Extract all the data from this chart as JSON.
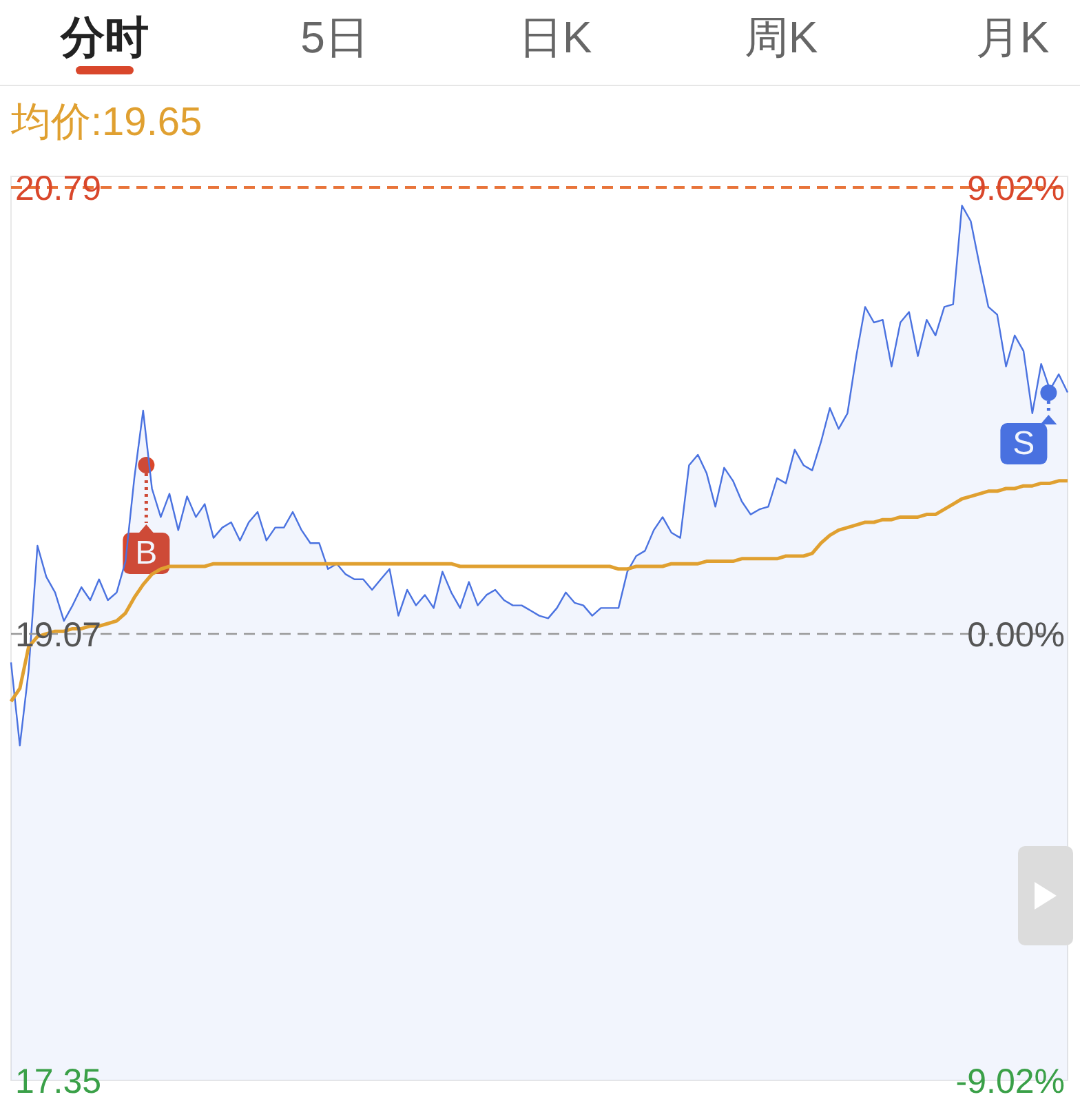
{
  "chart_data": {
    "type": "line",
    "annotations": [
      "分时",
      "5日",
      "日K",
      "周K",
      "月K",
      "均价:19.65",
      "B",
      "S"
    ],
    "categories": [
      null,
      null,
      null,
      null,
      null,
      null,
      null,
      null,
      null,
      null,
      null,
      null,
      null,
      null,
      null,
      null,
      null,
      null,
      null,
      null,
      null,
      null,
      null,
      null,
      null,
      null,
      null,
      null,
      null,
      null,
      null,
      null,
      null,
      null,
      null,
      null,
      null,
      null,
      null,
      null,
      null,
      null,
      null,
      null,
      null,
      null,
      null,
      null,
      null,
      null,
      null,
      null,
      null,
      null,
      null,
      null,
      null,
      null,
      null,
      null,
      null,
      null,
      null,
      null,
      null,
      null,
      null,
      null,
      null,
      null,
      null,
      null,
      null,
      null,
      null,
      null,
      null,
      null,
      null,
      null,
      null,
      null,
      null,
      null,
      null,
      null,
      null,
      null,
      null,
      null,
      null,
      null,
      null,
      null,
      null,
      null,
      null,
      null,
      null,
      null,
      null,
      null,
      null,
      null,
      null,
      null,
      null,
      null,
      null,
      null,
      null,
      null,
      null,
      null,
      null,
      null,
      null,
      null,
      null,
      null,
      null
    ],
    "ylim": [
      17.35,
      20.79
    ],
    "yticks": [
      17.35,
      19.07,
      20.79
    ],
    "y2lim": [
      -9.02,
      9.02
    ],
    "y2ticks": [
      {
        "value": -9.02,
        "label": "-9.02%"
      },
      {
        "value": 0,
        "label": "0.00%"
      },
      {
        "value": 9.02,
        "label": "9.02%"
      }
    ],
    "tick_labels": "y",
    "ref_lines": [
      {
        "axis": "y",
        "value": 20.79,
        "color": "#e8743a",
        "line_style": "dashed"
      },
      {
        "axis": "y",
        "value": 19.07,
        "color": "#999999",
        "line_style": "dashed"
      }
    ],
    "series": [
      {
        "type": "area",
        "color": "#4a72e0",
        "values": [
          18.96,
          18.64,
          18.93,
          19.41,
          19.29,
          19.23,
          19.12,
          19.18,
          19.25,
          19.2,
          19.28,
          19.2,
          19.23,
          19.35,
          19.67,
          19.93,
          19.63,
          19.52,
          19.61,
          19.47,
          19.6,
          19.52,
          19.57,
          19.44,
          19.48,
          19.5,
          19.43,
          19.5,
          19.54,
          19.43,
          19.48,
          19.48,
          19.54,
          19.47,
          19.42,
          19.42,
          19.32,
          19.34,
          19.3,
          19.28,
          19.28,
          19.24,
          19.28,
          19.32,
          19.14,
          19.24,
          19.18,
          19.22,
          19.17,
          19.31,
          19.23,
          19.17,
          19.27,
          19.18,
          19.22,
          19.24,
          19.2,
          19.18,
          19.18,
          19.16,
          19.14,
          19.13,
          19.17,
          19.23,
          19.19,
          19.18,
          19.14,
          19.17,
          19.17,
          19.17,
          19.31,
          19.37,
          19.39,
          19.47,
          19.52,
          19.46,
          19.44,
          19.72,
          19.76,
          19.69,
          19.56,
          19.71,
          19.66,
          19.58,
          19.53,
          19.55,
          19.56,
          19.67,
          19.65,
          19.78,
          19.72,
          19.7,
          19.81,
          19.94,
          19.86,
          19.92,
          20.14,
          20.33,
          20.27,
          20.28,
          20.1,
          20.27,
          20.31,
          20.14,
          20.28,
          20.22,
          20.33,
          20.34,
          20.72,
          20.66,
          20.49,
          20.33,
          20.3,
          20.1,
          20.22,
          20.16,
          19.92,
          20.11,
          20.01,
          20.07,
          20.0
        ]
      },
      {
        "color": "#e0a030",
        "values": [
          18.81,
          18.86,
          19.02,
          19.06,
          19.07,
          19.08,
          19.08,
          19.09,
          19.09,
          19.1,
          19.1,
          19.11,
          19.12,
          19.15,
          19.21,
          19.26,
          19.3,
          19.32,
          19.33,
          19.33,
          19.33,
          19.33,
          19.33,
          19.34,
          19.34,
          19.34,
          19.34,
          19.34,
          19.34,
          19.34,
          19.34,
          19.34,
          19.34,
          19.34,
          19.34,
          19.34,
          19.34,
          19.34,
          19.34,
          19.34,
          19.34,
          19.34,
          19.34,
          19.34,
          19.34,
          19.34,
          19.34,
          19.34,
          19.34,
          19.34,
          19.34,
          19.33,
          19.33,
          19.33,
          19.33,
          19.33,
          19.33,
          19.33,
          19.33,
          19.33,
          19.33,
          19.33,
          19.33,
          19.33,
          19.33,
          19.33,
          19.33,
          19.33,
          19.33,
          19.32,
          19.32,
          19.33,
          19.33,
          19.33,
          19.33,
          19.34,
          19.34,
          19.34,
          19.34,
          19.35,
          19.35,
          19.35,
          19.35,
          19.36,
          19.36,
          19.36,
          19.36,
          19.36,
          19.37,
          19.37,
          19.37,
          19.38,
          19.42,
          19.45,
          19.47,
          19.48,
          19.49,
          19.5,
          19.5,
          19.51,
          19.51,
          19.52,
          19.52,
          19.52,
          19.53,
          19.53,
          19.55,
          19.57,
          19.59,
          19.6,
          19.61,
          19.62,
          19.62,
          19.63,
          19.63,
          19.64,
          19.64,
          19.65,
          19.65,
          19.66,
          19.66
        ]
      }
    ]
  }
}
